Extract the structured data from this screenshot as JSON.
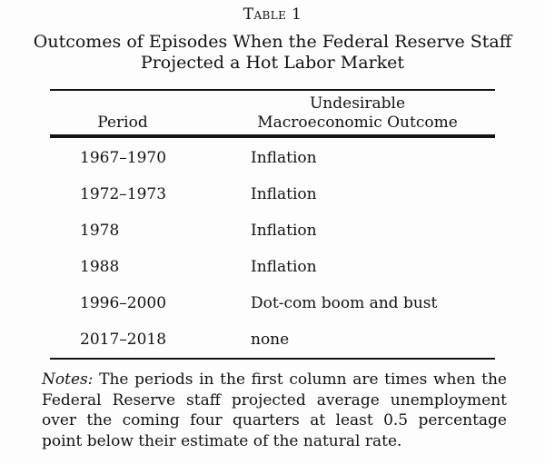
{
  "caption": {
    "number": "Table 1",
    "title_lines": [
      "Outcomes of Episodes When the Federal Reserve Staff",
      "Projected a Hot Labor Market"
    ]
  },
  "table": {
    "columns": [
      {
        "header": "Period"
      },
      {
        "header_lines": [
          "Undesirable",
          "Macroeconomic Outcome"
        ]
      }
    ],
    "rows": [
      {
        "period": "1967–1970",
        "outcome": "Inflation"
      },
      {
        "period": "1972–1973",
        "outcome": "Inflation"
      },
      {
        "period": "1978",
        "outcome": "Inflation"
      },
      {
        "period": "1988",
        "outcome": "Inflation"
      },
      {
        "period": "1996–2000",
        "outcome": "Dot-com boom and bust"
      },
      {
        "period": "2017–2018",
        "outcome": "none"
      }
    ]
  },
  "notes": {
    "label": "Notes:",
    "text": "The periods in the first column are times when the Federal Reserve staff projected average unemployment over the coming four quarters at least 0.5 percentage point below their estimate of the natural rate."
  },
  "colors": {
    "text": "#121212",
    "rule": "#121212",
    "background": "#fdfdfd"
  }
}
